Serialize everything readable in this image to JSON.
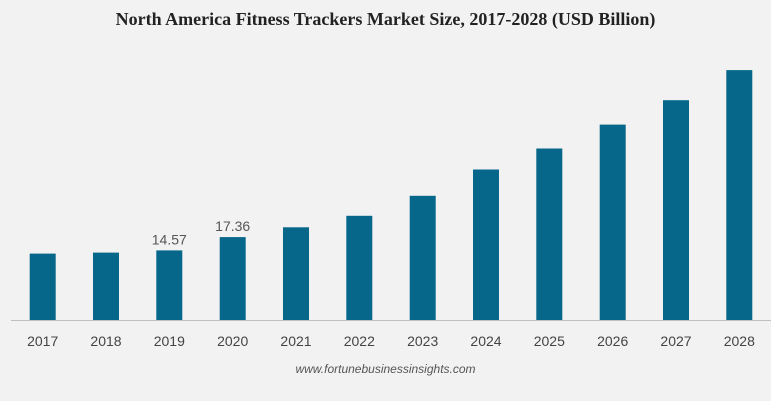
{
  "chart_data": {
    "type": "bar",
    "title": "North America Fitness Trackers Market Size, 2017-2028 (USD Billion)",
    "categories": [
      "2017",
      "2018",
      "2019",
      "2020",
      "2021",
      "2022",
      "2023",
      "2024",
      "2025",
      "2026",
      "2027",
      "2028"
    ],
    "values": [
      13.9,
      14.1,
      14.57,
      17.36,
      19.4,
      21.8,
      26.0,
      31.5,
      35.9,
      40.9,
      46.0,
      52.3
    ],
    "data_labels": [
      {
        "category": "2019",
        "text": "14.57"
      },
      {
        "category": "2020",
        "text": "17.36"
      }
    ],
    "ylim": [
      0,
      54
    ],
    "grid": false,
    "legend": "none",
    "bar_color": "#07678b",
    "axis_color": "#bfbfbf"
  },
  "footer": {
    "source": "www.fortunebusinessinsights.com"
  }
}
